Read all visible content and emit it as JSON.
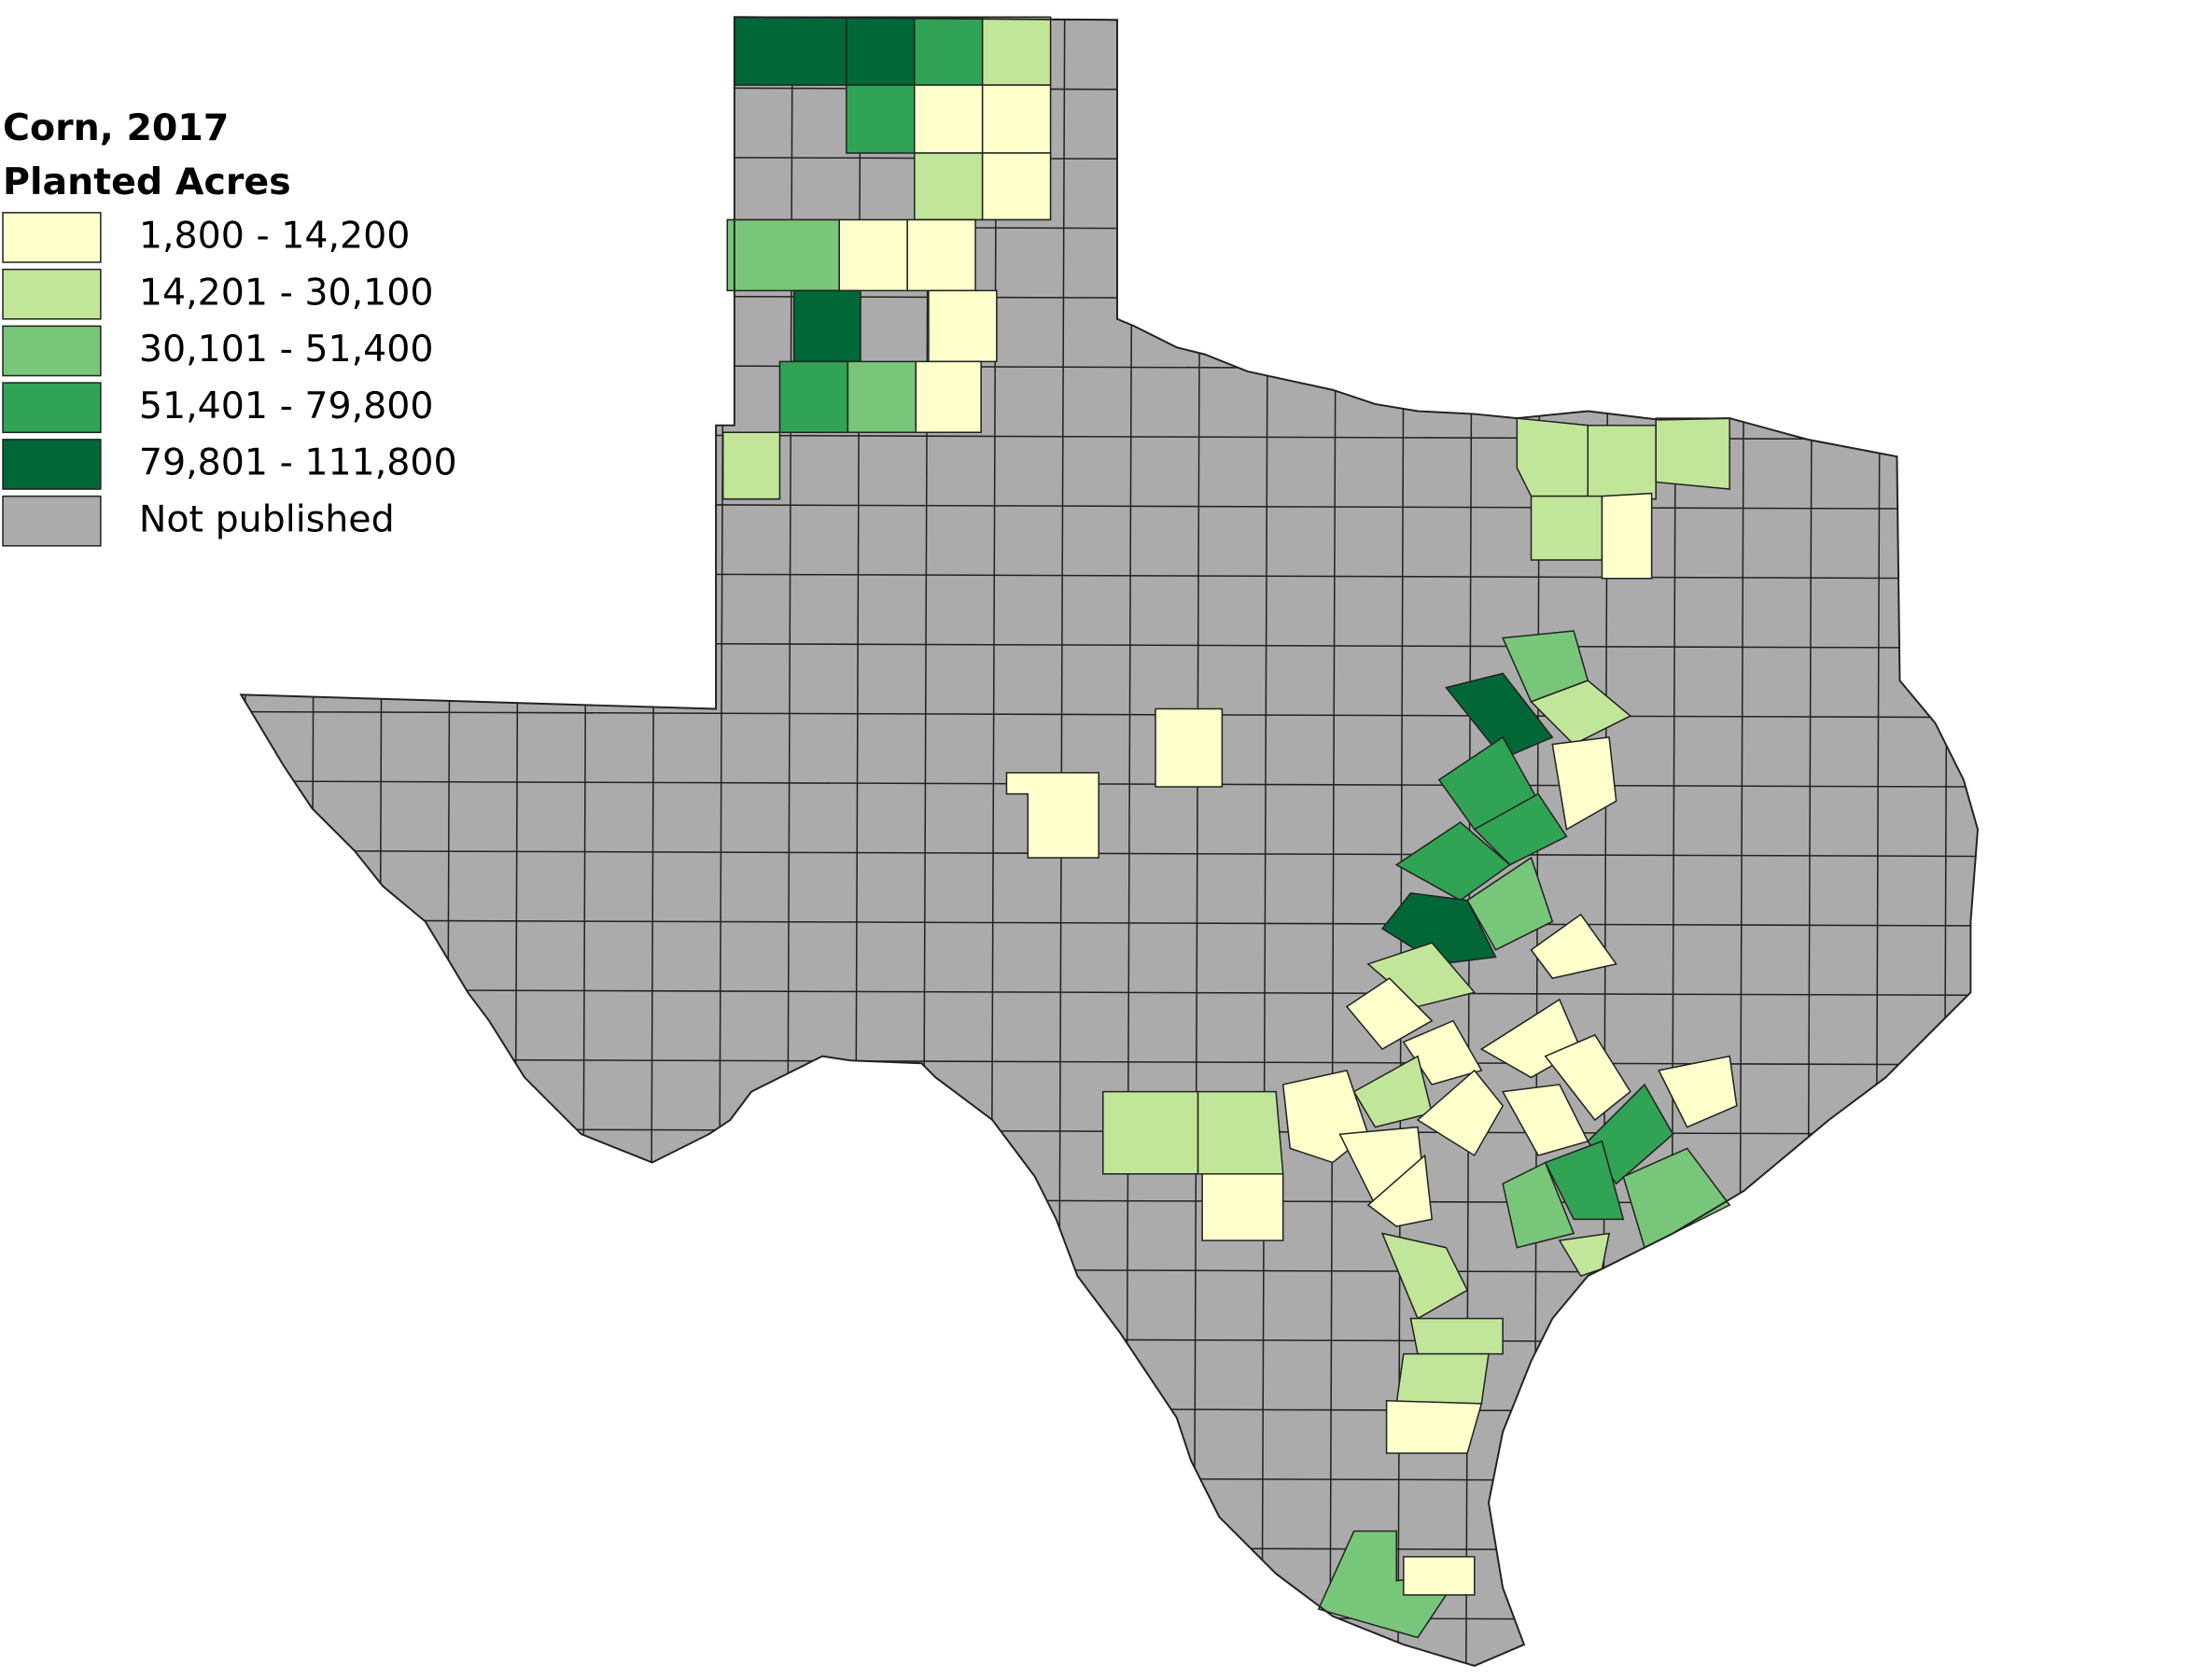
{
  "title": "Corn, 2017",
  "subtitle": "Planted Acres",
  "legend": [
    {
      "label": "1,800 - 14,200",
      "color": "#ffffcc"
    },
    {
      "label": "14,201 - 30,100",
      "color": "#c2e699"
    },
    {
      "label": "30,101 - 51,400",
      "color": "#78c679"
    },
    {
      "label": "51,401 - 79,800",
      "color": "#31a354"
    },
    {
      "label": "79,801 - 111,800",
      "color": "#006837"
    },
    {
      "label": "Not published",
      "color": "#ababab"
    }
  ]
}
